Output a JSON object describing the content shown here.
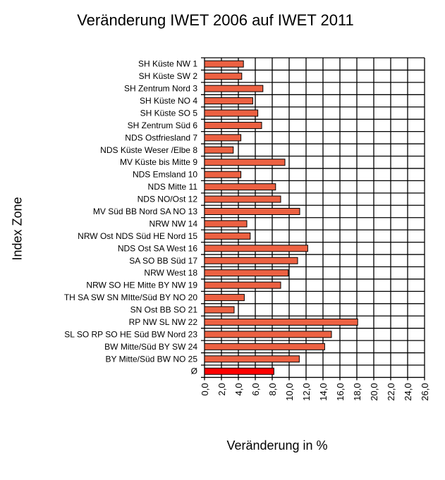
{
  "chart_data": {
    "type": "bar",
    "orientation": "horizontal",
    "title": "Veränderung IWET 2006 auf IWET 2011",
    "xlabel": "Veränderung in %",
    "ylabel": "Index Zone",
    "xlim": [
      0,
      26
    ],
    "xticks": [
      "0,0",
      "2,0",
      "4,0",
      "6,0",
      "8,0",
      "10,0",
      "12,0",
      "14,0",
      "16,0",
      "18,0",
      "20,0",
      "22,0",
      "24,0",
      "26,0"
    ],
    "grid": true,
    "categories": [
      "SH Küste NW   1",
      "SH Küste SW   2",
      "SH Zentrum Nord   3",
      "SH Küste NO   4",
      "SH Küste SO   5",
      "SH Zentrum Süd   6",
      "NDS Ostfriesland   7",
      "NDS Küste Weser /Elbe  8",
      "MV Küste bis Mitte   9",
      "NDS Emsland  10",
      "NDS Mitte 11",
      "NDS NO/Ost  12",
      "MV Süd  BB Nord  SA NO  13",
      "NRW NW  14",
      "NRW Ost  NDS Süd  HE Nord  15",
      "NDS Ost  SA West 16",
      "SA SO  BB Süd  17",
      "NRW West  18",
      "NRW SO  HE Mitte BY NW  19",
      "TH  SA SW  SN MItte/Süd  BY NO  20",
      "SN Ost  BB SO  21",
      "RP NW   SL NW  22",
      "SL SO  RP SO  HE Süd  BW Nord  23",
      "BW Mitte/Süd  BY SW  24",
      "BY Mitte/Süd  BW NO  25",
      "Ø"
    ],
    "values": [
      4.6,
      4.4,
      6.9,
      5.7,
      6.3,
      6.75,
      4.3,
      3.4,
      9.5,
      4.3,
      8.4,
      9.0,
      11.25,
      5.0,
      5.4,
      12.2,
      11.0,
      9.9,
      9.0,
      4.7,
      3.5,
      18.1,
      15.0,
      14.2,
      11.2,
      8.2
    ],
    "colors": {
      "bar": "#EC6142",
      "average": "#FF0000"
    }
  }
}
